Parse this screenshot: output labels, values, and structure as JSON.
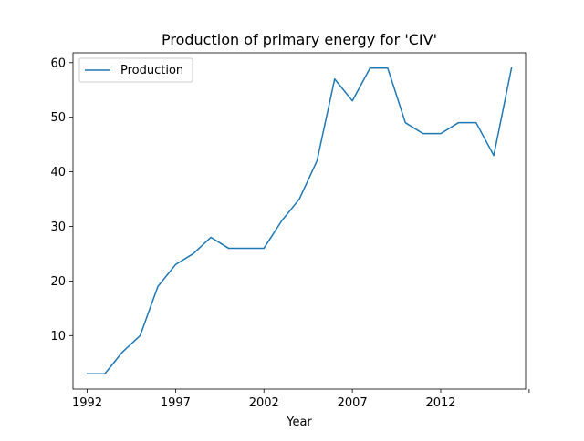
{
  "chart_data": {
    "type": "line",
    "title": "Production of primary energy for 'CIV'",
    "xlabel": "Year",
    "ylabel": "",
    "xlim": [
      1991.2,
      2016.8
    ],
    "ylim": [
      0.2,
      61.8
    ],
    "x_ticks": [
      {
        "value": 1992,
        "label": "1992"
      },
      {
        "value": 1997,
        "label": "1997"
      },
      {
        "value": 2002,
        "label": "2002"
      },
      {
        "value": 2007,
        "label": "2007"
      },
      {
        "value": 2012,
        "label": "2012"
      },
      {
        "value": 2017,
        "label": ""
      }
    ],
    "y_ticks": [
      {
        "value": 10,
        "label": "10"
      },
      {
        "value": 20,
        "label": "20"
      },
      {
        "value": 30,
        "label": "30"
      },
      {
        "value": 40,
        "label": "40"
      },
      {
        "value": 50,
        "label": "50"
      },
      {
        "value": 60,
        "label": "60"
      }
    ],
    "grid": false,
    "legend": {
      "placement": "top-left",
      "entries": [
        "Production"
      ]
    },
    "series": [
      {
        "name": "Production",
        "color": "#1f77b4",
        "x": [
          1992,
          1993,
          1994,
          1995,
          1996,
          1997,
          1998,
          1999,
          2000,
          2001,
          2002,
          2003,
          2004,
          2005,
          2006,
          2007,
          2008,
          2009,
          2010,
          2011,
          2012,
          2013,
          2014,
          2015,
          2016
        ],
        "y": [
          3,
          3,
          7,
          10,
          19,
          23,
          25,
          28,
          26,
          26,
          26,
          31,
          35,
          42,
          57,
          53,
          59,
          59,
          49,
          47,
          47,
          49,
          49,
          43,
          59
        ]
      }
    ]
  }
}
